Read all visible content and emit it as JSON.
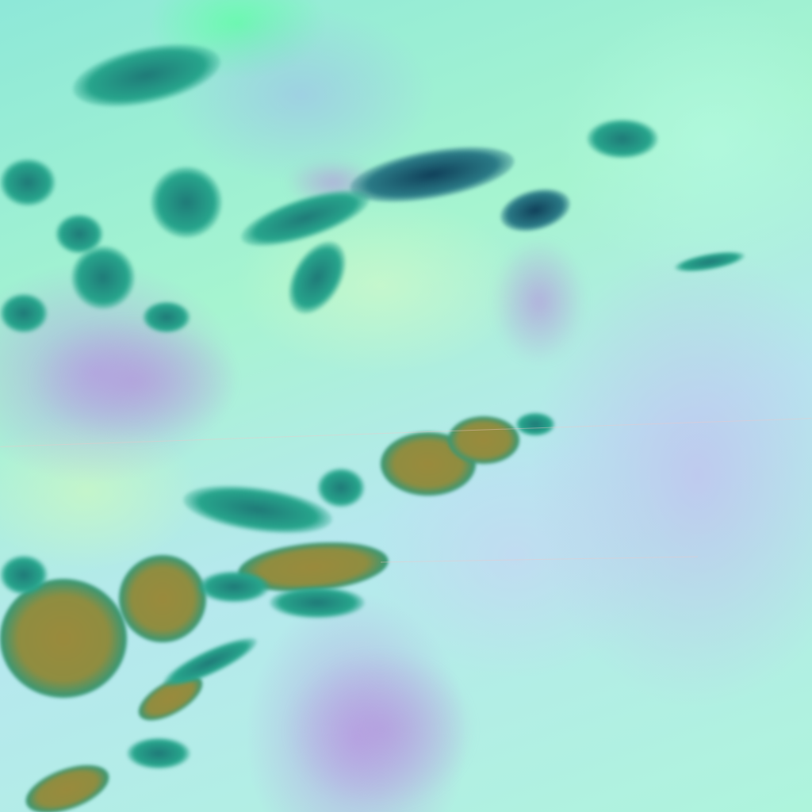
{
  "image": {
    "kind": "false-color satellite imagery",
    "colors": {
      "background_mint": "#9ff5d2",
      "haze_lavender": "#b8a8e6",
      "dark_teal": "#1f7a78",
      "navy_cloud": "#10405a",
      "olive_core": "#9a8a3c"
    }
  }
}
